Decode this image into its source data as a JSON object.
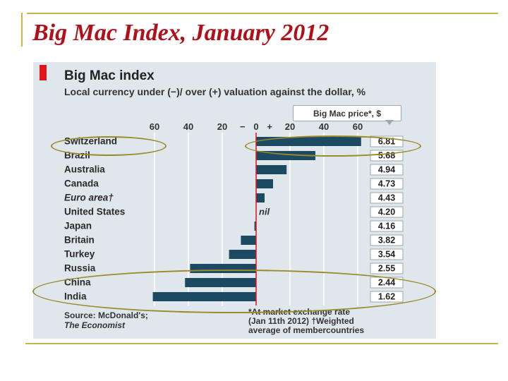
{
  "slide": {
    "title": "Big Mac Index, January 2012"
  },
  "chart_data": {
    "type": "bar",
    "orientation": "horizontal",
    "title": "Big Mac index",
    "subtitle": "Local currency under (−)/ over (+) valuation against the dollar, %",
    "axis_ticks": [
      "60",
      "40",
      "20",
      "−",
      "0",
      "+",
      "20",
      "40",
      "60"
    ],
    "tick_values": [
      -60,
      -40,
      -20,
      0,
      20,
      40,
      60
    ],
    "xlim": [
      -60,
      60
    ],
    "price_header": "Big Mac price*, $",
    "nil_label": "nil",
    "categories": [
      "Switzerland",
      "Brazil",
      "Australia",
      "Canada",
      "Euro area†",
      "United States",
      "Japan",
      "Britain",
      "Turkey",
      "Russia",
      "China",
      "India"
    ],
    "italic_categories": [
      "Euro area†"
    ],
    "values": [
      62,
      35,
      18,
      10,
      5,
      0,
      -1,
      -9,
      -16,
      -39,
      -42,
      -61
    ],
    "prices": [
      "6.81",
      "5.68",
      "4.94",
      "4.73",
      "4.43",
      "4.20",
      "4.16",
      "3.82",
      "3.54",
      "2.55",
      "2.44",
      "1.62"
    ],
    "source_line1": "Source: McDonald's;",
    "source_line2": "The Economist",
    "footnote_line1": "*At market exchange rate",
    "footnote_line2": "(Jan 11th 2012) †Weighted",
    "footnote_line3": "average of membercountries",
    "colors": {
      "bar": "#1d4a63",
      "zero_line": "#e0141c",
      "panel_bg": "#dfe7ed",
      "grid": "#ffffff"
    }
  }
}
